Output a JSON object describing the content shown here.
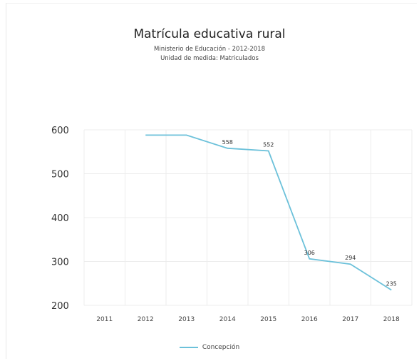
{
  "chart_data": {
    "type": "line",
    "title": "Matrícula educativa rural",
    "subtitle": "Ministerio de Educación - 2012-2018",
    "subtitle2": "Unidad de medida: Matriculados",
    "categories": [
      "2011",
      "2012",
      "2013",
      "2014",
      "2015",
      "2016",
      "2017",
      "2018"
    ],
    "series": [
      {
        "name": "Concepción",
        "values": [
          null,
          588,
          588,
          558,
          552,
          306,
          294,
          235
        ],
        "labels": [
          "",
          "",
          "",
          "558",
          "552",
          "306",
          "294",
          "235"
        ]
      }
    ],
    "yticks": [
      "600",
      "500",
      "400",
      "300",
      "200"
    ],
    "ylim": [
      200,
      600
    ],
    "grid": true,
    "legend": "bottom",
    "line_color": "#6cc1da"
  }
}
